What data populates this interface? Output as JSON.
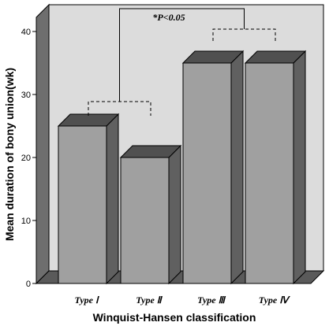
{
  "chart_data": {
    "type": "bar",
    "categories": [
      "Type Ⅰ",
      "Type Ⅱ",
      "Type Ⅲ",
      "Type Ⅳ"
    ],
    "values": [
      25,
      20,
      35,
      35
    ],
    "xlabel": "Winquist-Hansen classification",
    "ylabel": "Mean duration of bony union(wk)",
    "ylim": [
      0,
      40
    ],
    "yticks": [
      0,
      10,
      20,
      30,
      40
    ],
    "grid": false,
    "three_d": true,
    "annotation": "*P<0.05",
    "brackets": [
      {
        "from": 0,
        "to": 1,
        "style": "dashed"
      },
      {
        "from": 2,
        "to": 3,
        "style": "dashed"
      },
      {
        "from": "group-0-1",
        "to": "group-2-3",
        "style": "solid",
        "label": "*P<0.05"
      }
    ],
    "colors": {
      "bar_front": "#a0a0a0",
      "bar_top": "#505050",
      "bar_side": "#606060",
      "plot_bg": "#dcdcdc",
      "wall_side": "#6e6e6e",
      "floor": "#5a5a5a"
    }
  }
}
